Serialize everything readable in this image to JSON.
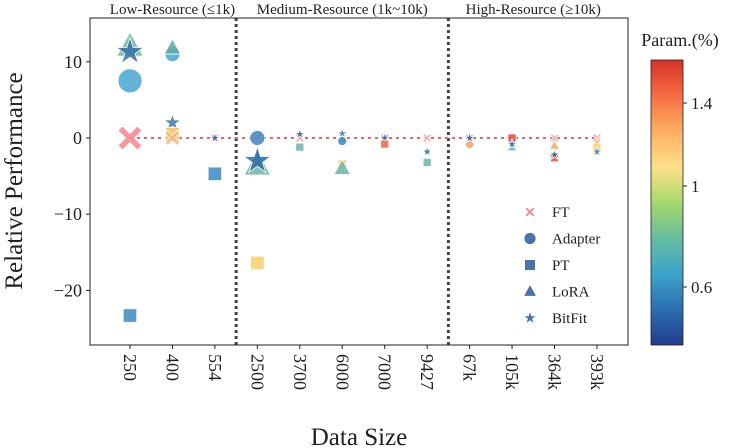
{
  "chart_data": {
    "type": "scatter",
    "xlabel": "Data Size",
    "ylabel": "Relative Performance",
    "categories": [
      "250",
      "400",
      "554",
      "2500",
      "3700",
      "6000",
      "7000",
      "9427",
      "67k",
      "105k",
      "364k",
      "393k"
    ],
    "ylim": [
      -26,
      16
    ],
    "yticks": [
      10,
      0,
      -10,
      -20
    ],
    "yticklabels": [
      "10",
      "0",
      "−10",
      "−20"
    ],
    "grid": false,
    "sections": [
      {
        "label": "Low-Resource (≤1k)",
        "from": 0,
        "to": 2
      },
      {
        "label": "Medium-Resource (1k~10k)",
        "from": 3,
        "to": 7
      },
      {
        "label": "High-Resource (≥10k)",
        "from": 8,
        "to": 11
      }
    ],
    "reference_line": {
      "y": 0,
      "color": "#e8636b",
      "style": "dotted"
    },
    "legend": {
      "placement": "lower-right",
      "entries": [
        {
          "name": "FT",
          "marker": "x",
          "color": "#f08a94"
        },
        {
          "name": "Adapter",
          "marker": "circle",
          "color": "#4a73a8"
        },
        {
          "name": "PT",
          "marker": "square",
          "color": "#4a73a8"
        },
        {
          "name": "LoRA",
          "marker": "triangle",
          "color": "#4a73a8"
        },
        {
          "name": "BitFit",
          "marker": "star",
          "color": "#4a73a8"
        }
      ]
    },
    "colorbar": {
      "label": "Param.(%)",
      "ticks": [
        1.4,
        1,
        0.6
      ],
      "ticklabels": [
        "1.4",
        "1",
        "0.6"
      ],
      "colormap": [
        "#d73027",
        "#f46d43",
        "#fdae61",
        "#fee08b",
        "#a6d96a",
        "#66bd9f",
        "#3ca3c8",
        "#2c6fb0",
        "#233b8e"
      ]
    },
    "points": [
      {
        "x": "250",
        "method": "FT",
        "y": 0,
        "size": 3,
        "color": "#f4858f"
      },
      {
        "x": "250",
        "method": "LoRA",
        "y": 12,
        "size": 3,
        "color": "#6cb7a4"
      },
      {
        "x": "250",
        "method": "BitFit",
        "y": 11.3,
        "size": 3,
        "color": "#3a6fa8"
      },
      {
        "x": "250",
        "method": "Adapter",
        "y": 7.5,
        "size": 3,
        "color": "#48a6cf"
      },
      {
        "x": "250",
        "method": "PT",
        "y": -23.3,
        "size": 2,
        "color": "#3d88c0"
      },
      {
        "x": "400",
        "method": "Adapter",
        "y": 11,
        "size": 2,
        "color": "#48a6cf"
      },
      {
        "x": "400",
        "method": "LoRA",
        "y": 11.8,
        "size": 2,
        "color": "#5aae9e"
      },
      {
        "x": "400",
        "method": "BitFit",
        "y": 2,
        "size": 2,
        "color": "#3a75b5"
      },
      {
        "x": "400",
        "method": "PT",
        "y": 0.5,
        "size": 2,
        "color": "#f7c35a"
      },
      {
        "x": "400",
        "method": "FT",
        "y": 0,
        "size": 2,
        "color": "#f8b880"
      },
      {
        "x": "554",
        "method": "FT",
        "y": 0,
        "size": 1,
        "color": "#f4a0a8"
      },
      {
        "x": "554",
        "method": "BitFit",
        "y": 0,
        "size": 1,
        "color": "#2f5a8e"
      },
      {
        "x": "554",
        "method": "PT",
        "y": -4.7,
        "size": 2,
        "color": "#3d88c0"
      },
      {
        "x": "2500",
        "method": "FT",
        "y": 0,
        "size": 1,
        "color": "#f4a0a8"
      },
      {
        "x": "2500",
        "method": "Adapter",
        "y": 0,
        "size": 2,
        "color": "#3f86bd"
      },
      {
        "x": "2500",
        "method": "LoRA",
        "y": -3.6,
        "size": 3,
        "color": "#6cb7a4"
      },
      {
        "x": "2500",
        "method": "BitFit",
        "y": -3,
        "size": 3,
        "color": "#2f6aa8"
      },
      {
        "x": "2500",
        "method": "PT",
        "y": -16.4,
        "size": 2,
        "color": "#f9cf6a"
      },
      {
        "x": "3700",
        "method": "FT",
        "y": 0,
        "size": 1,
        "color": "#f4a0a8"
      },
      {
        "x": "3700",
        "method": "BitFit",
        "y": 0.5,
        "size": 1,
        "color": "#2f5a8e"
      },
      {
        "x": "3700",
        "method": "PT",
        "y": -1.2,
        "size": 1,
        "color": "#6cb7a4"
      },
      {
        "x": "6000",
        "method": "FT",
        "y": 0,
        "size": 1,
        "color": "#f4a0a8"
      },
      {
        "x": "6000",
        "method": "Adapter",
        "y": -0.4,
        "size": 1,
        "color": "#3f86bd"
      },
      {
        "x": "6000",
        "method": "BitFit",
        "y": 0.6,
        "size": 1,
        "color": "#3a75b5"
      },
      {
        "x": "6000",
        "method": "PT",
        "y": -3.4,
        "size": 1,
        "color": "#f7c35a"
      },
      {
        "x": "6000",
        "method": "LoRA",
        "y": -4,
        "size": 2,
        "color": "#6cb7a4"
      },
      {
        "x": "7000",
        "method": "FT",
        "y": 0,
        "size": 1,
        "color": "#f4a0a8"
      },
      {
        "x": "7000",
        "method": "BitFit",
        "y": 0,
        "size": 1,
        "color": "#2f5a8e"
      },
      {
        "x": "7000",
        "method": "PT",
        "y": -0.8,
        "size": 1,
        "color": "#e8674e"
      },
      {
        "x": "9427",
        "method": "FT",
        "y": 0,
        "size": 1,
        "color": "#f4a0a8"
      },
      {
        "x": "9427",
        "method": "BitFit",
        "y": -1.8,
        "size": 1,
        "color": "#2f6a90"
      },
      {
        "x": "9427",
        "method": "PT",
        "y": -3.2,
        "size": 1,
        "color": "#6cb7a4"
      },
      {
        "x": "67k",
        "method": "FT",
        "y": 0,
        "size": 1,
        "color": "#f4a0a8"
      },
      {
        "x": "67k",
        "method": "Adapter",
        "y": -0.8,
        "size": 1,
        "color": "#f4a070"
      },
      {
        "x": "67k",
        "method": "BitFit",
        "y": 0,
        "size": 1,
        "color": "#2f5a8e"
      },
      {
        "x": "105k",
        "method": "PT",
        "y": 0,
        "size": 1,
        "color": "#dc4b3a"
      },
      {
        "x": "105k",
        "method": "LoRA",
        "y": -1.2,
        "size": 1,
        "color": "#6cb7a4"
      },
      {
        "x": "105k",
        "method": "BitFit",
        "y": -0.8,
        "size": 1,
        "color": "#2f6a90"
      },
      {
        "x": "364k",
        "method": "FT",
        "y": 0,
        "size": 1,
        "color": "#f4a0a8"
      },
      {
        "x": "364k",
        "method": "LoRA",
        "y": -1,
        "size": 1,
        "color": "#f6a862"
      },
      {
        "x": "364k",
        "method": "PT",
        "y": -2.6,
        "size": 1,
        "color": "#e0543f"
      },
      {
        "x": "364k",
        "method": "BitFit",
        "y": -2.2,
        "size": 1,
        "color": "#2f5a8e"
      },
      {
        "x": "393k",
        "method": "FT",
        "y": 0,
        "size": 1,
        "color": "#f4a0a8"
      },
      {
        "x": "393k",
        "method": "LoRA",
        "y": -0.7,
        "size": 1,
        "color": "#f7c35a"
      },
      {
        "x": "393k",
        "method": "PT",
        "y": -1.3,
        "size": 1,
        "color": "#f9d46e"
      },
      {
        "x": "393k",
        "method": "BitFit",
        "y": -1.8,
        "size": 1,
        "color": "#3a75b5"
      }
    ]
  }
}
